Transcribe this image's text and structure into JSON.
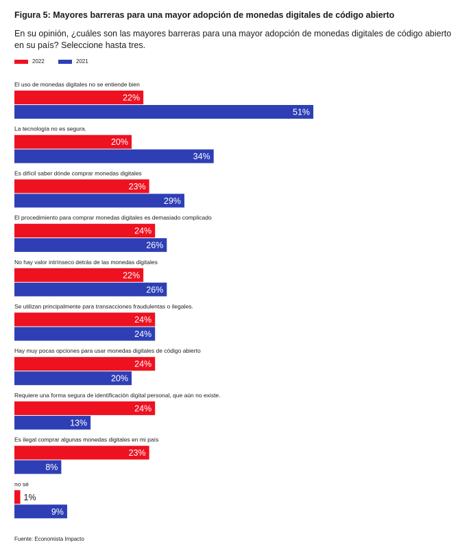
{
  "title": "Figura 5: Mayores barreras para una mayor adopción de monedas digitales de código abierto",
  "subtitle": "En su opinión, ¿cuáles son las mayores barreras para una mayor adopción de monedas digitales de código abierto en su país? Seleccione hasta tres.",
  "source": "Fuente: Economista Impacto",
  "colors": {
    "2022": "#ee1120",
    "2021": "#2e3fb5"
  },
  "chart_data": {
    "type": "bar",
    "orientation": "horizontal",
    "value_suffix": "%",
    "xlim": [
      0,
      100
    ],
    "grid": false,
    "legend_position": "top-left",
    "categories": [
      "El uso de monedas digitales no se entiende bien",
      "La tecnología no es segura.",
      "Es difícil saber dónde comprar monedas digitales",
      "El procedimiento para comprar monedas digitales es demasiado complicado",
      "No hay valor intrínseco detrás de las monedas digitales",
      "Se utilizan principalmente para transacciones fraudulentas o ilegales.",
      "Hay muy pocas opciones para usar monedas digitales de código abierto",
      "Requiere una forma segura de identificación digital personal, que aún no existe.",
      "Es ilegal comprar algunas monedas digitales en mi país",
      "no sé"
    ],
    "series": [
      {
        "name": "2022",
        "values": [
          22,
          20,
          23,
          24,
          22,
          24,
          24,
          24,
          23,
          1
        ]
      },
      {
        "name": "2021",
        "values": [
          51,
          34,
          29,
          26,
          26,
          24,
          20,
          13,
          8,
          9
        ]
      }
    ]
  }
}
